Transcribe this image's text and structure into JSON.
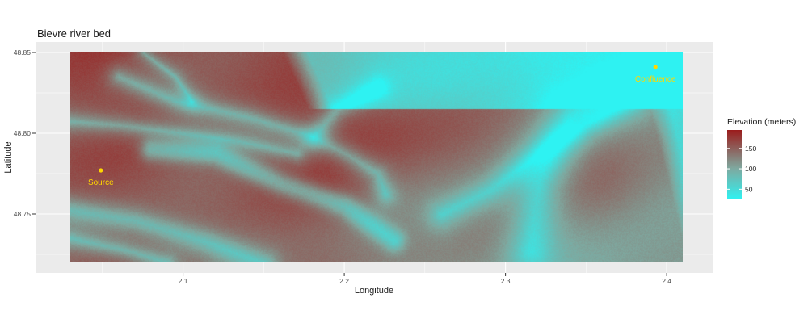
{
  "chart_data": {
    "type": "heatmap",
    "title": "Bievre river bed",
    "xlabel": "Longitude",
    "ylabel": "Latitude",
    "xlim": [
      2.03,
      2.41
    ],
    "ylim": [
      48.72,
      48.85
    ],
    "x_ticks": [
      2.1,
      2.2,
      2.3,
      2.4
    ],
    "y_ticks": [
      48.75,
      48.8,
      48.85
    ],
    "x_tick_labels": [
      "2.1",
      "2.2",
      "2.3",
      "2.4"
    ],
    "y_tick_labels": [
      "48.75",
      "48.80",
      "48.85"
    ],
    "grid": true,
    "legend": {
      "title": "Elevation (meters)",
      "position": "right",
      "range": [
        25,
        195
      ],
      "ticks": [
        50,
        100,
        150
      ],
      "tick_labels": [
        "50",
        "100",
        "150"
      ],
      "color_low": "#2ef2f2",
      "color_mid": "#7fa89f",
      "color_high": "#9b1c1c"
    },
    "points": [
      {
        "label": "Source",
        "lon": 2.049,
        "lat": 48.777
      },
      {
        "label": "Confluence",
        "lon": 2.393,
        "lat": 48.841
      }
    ],
    "point_color": "#ffd700",
    "panel_background": "#ebebeb"
  }
}
